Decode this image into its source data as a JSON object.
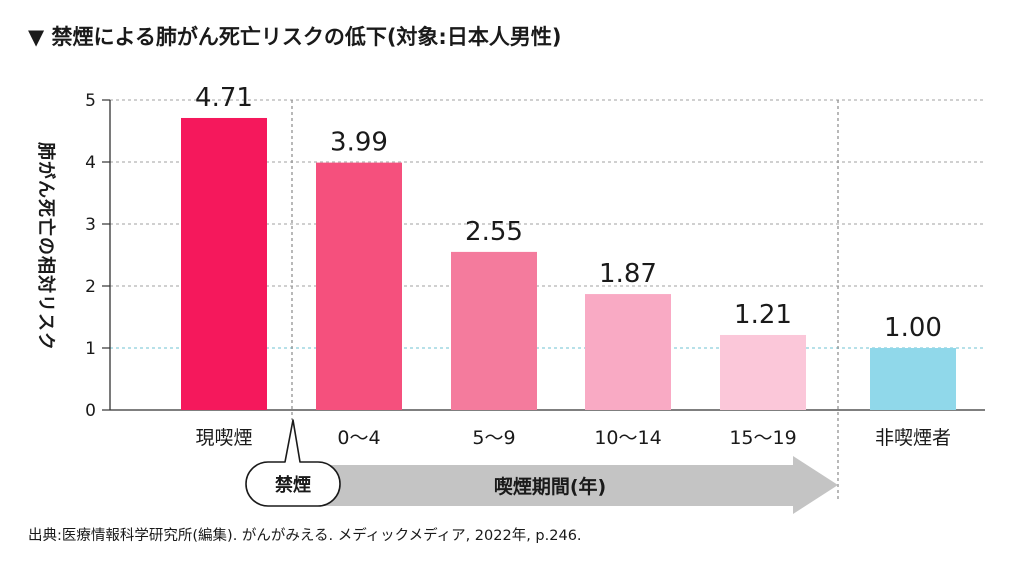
{
  "chart_data": {
    "type": "bar",
    "title": "▼ 禁煙による肺がん死亡リスクの低下(対象:日本人男性)",
    "ylabel": "肺がん死亡の相対リスク",
    "xlabel": "",
    "ylim": [
      0,
      5
    ],
    "yticks": [
      0,
      1,
      2,
      3,
      4,
      5
    ],
    "grid": true,
    "categories": [
      "現喫煙",
      "0〜4",
      "5〜9",
      "10〜14",
      "15〜19",
      "非喫煙者"
    ],
    "values": [
      4.71,
      3.99,
      2.55,
      1.87,
      1.21,
      1.0
    ],
    "value_labels": [
      "4.71",
      "3.99",
      "2.55",
      "1.87",
      "1.21",
      "1.00"
    ],
    "bar_colors": [
      "#f5185c",
      "#f5507d",
      "#f47b9d",
      "#f9aac4",
      "#fbc7d9",
      "#90d8ea"
    ],
    "annotations": {
      "quit_label": "禁煙",
      "period_label": "喫煙期間(年)"
    },
    "source": "出典:医療情報科学研究所(編集). がんがみえる. メディックメディア, 2022年, p.246."
  }
}
